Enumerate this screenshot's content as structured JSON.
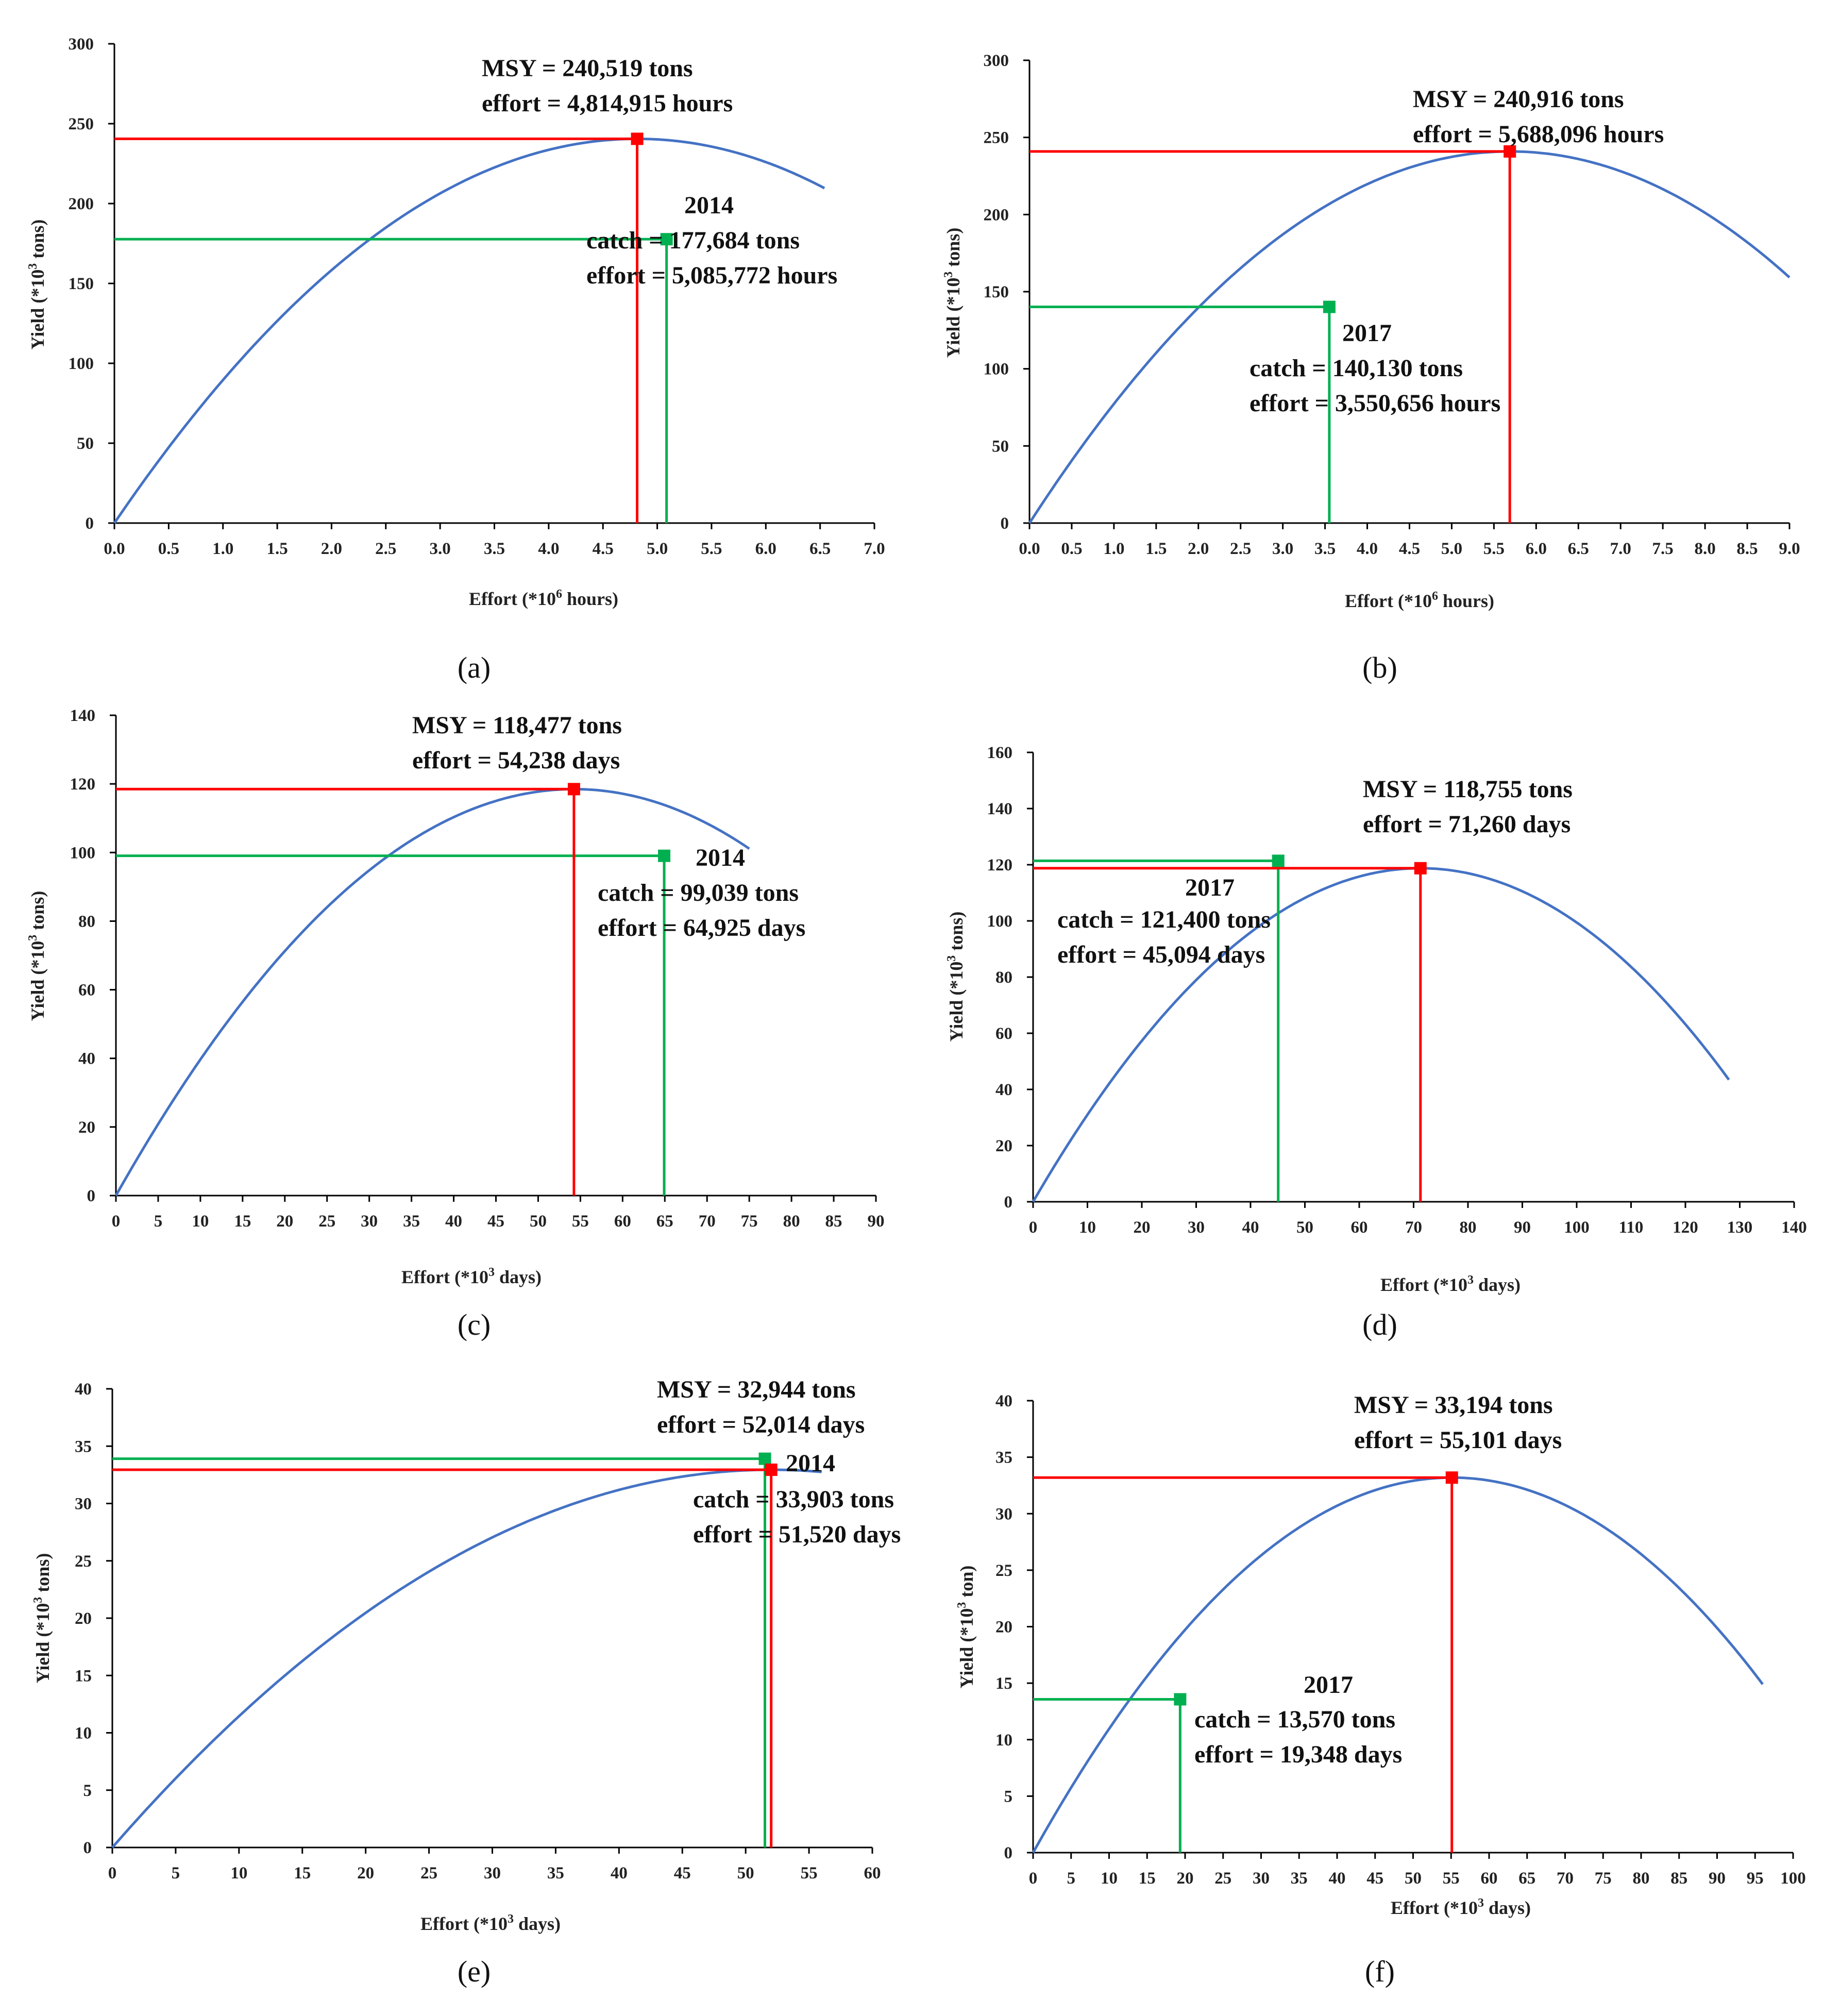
{
  "colors": {
    "curve": "#4472c4",
    "msy": "#ff0000",
    "observed": "#00b050",
    "axis": "#000000"
  },
  "chart_data": [
    {
      "type": "line",
      "caption": "(a)",
      "xlabel": "Effort (*10",
      "xlabel_sup": "6",
      "xlabel_end": " hours)",
      "ylabel": "Yield (*10",
      "ylabel_sup": "3",
      "ylabel_end": "  tons)",
      "xlim": [
        0,
        7
      ],
      "ylim": [
        0,
        300
      ],
      "xstep": 0.5,
      "ystep": 50,
      "xdecimals": 1,
      "curve": {
        "emax": 6.54,
        "fmsy": 4.814915,
        "msy": 240.519
      },
      "msy_point": {
        "x": 4.814915,
        "y": 240.519
      },
      "obs_point": {
        "x": 5.085772,
        "y": 177.684
      },
      "msy_text": {
        "line1": "MSY = 240,519 tons",
        "line2": "effort = 4,814,915 hours"
      },
      "obs_text": {
        "year": "2014",
        "line1": "catch = 177,684 tons",
        "line2": "effort = 5,085,772 hours"
      }
    },
    {
      "type": "line",
      "caption": "(b)",
      "xlabel": "Effort (*10",
      "xlabel_sup": "6",
      "xlabel_end": " hours)",
      "ylabel": "Yield (*10",
      "ylabel_sup": "3",
      "ylabel_end": " tons)",
      "xlim": [
        0,
        9
      ],
      "ylim": [
        0,
        300
      ],
      "xstep": 0.5,
      "ystep": 50,
      "xdecimals": 1,
      "curve": {
        "emax": 9.0,
        "fmsy": 5.688096,
        "msy": 240.916
      },
      "msy_point": {
        "x": 5.688096,
        "y": 240.916
      },
      "obs_point": {
        "x": 3.550656,
        "y": 140.13
      },
      "msy_text": {
        "line1": "MSY = 240,916 tons",
        "line2": "effort = 5,688,096 hours"
      },
      "obs_text": {
        "year": "2017",
        "line1": "catch = 140,130 tons",
        "line2": "effort = 3,550,656 hours"
      }
    },
    {
      "type": "line",
      "caption": "(c)",
      "xlabel": "Effort (*10",
      "xlabel_sup": "3",
      "xlabel_end": " days)",
      "ylabel": "Yield (*10",
      "ylabel_sup": "3",
      "ylabel_end": " tons)",
      "xlim": [
        0,
        90
      ],
      "ylim": [
        0,
        140
      ],
      "xstep": 5,
      "ystep": 20,
      "xdecimals": 0,
      "curve": {
        "emax": 75,
        "fmsy": 54.238,
        "msy": 118.477
      },
      "msy_point": {
        "x": 54.238,
        "y": 118.477
      },
      "obs_point": {
        "x": 64.925,
        "y": 99.039
      },
      "msy_text": {
        "line1": "MSY = 118,477 tons",
        "line2": "effort = 54,238 days"
      },
      "obs_text": {
        "year": "2014",
        "line1": "catch = 99,039 tons",
        "line2": "effort = 64,925 days"
      }
    },
    {
      "type": "line",
      "caption": "(d)",
      "xlabel": "Effort (*10",
      "xlabel_sup": "3",
      "xlabel_end": " days)",
      "ylabel": "Yield (*10",
      "ylabel_sup": "3",
      "ylabel_end": " tons)",
      "xlim": [
        0,
        140
      ],
      "ylim": [
        0,
        160
      ],
      "xstep": 10,
      "ystep": 20,
      "xdecimals": 0,
      "curve": {
        "emax": 128,
        "fmsy": 71.26,
        "msy": 118.755
      },
      "msy_point": {
        "x": 71.26,
        "y": 118.755
      },
      "obs_point": {
        "x": 45.094,
        "y": 121.4
      },
      "msy_text": {
        "line1": "MSY = 118,755 tons",
        "line2": "effort = 71,260 days"
      },
      "obs_text": {
        "year": "2017",
        "line1": "catch = 121,400 tons",
        "line2": "effort =  45,094 days"
      }
    },
    {
      "type": "line",
      "caption": "(e)",
      "xlabel": "Effort (*10",
      "xlabel_sup": "3",
      "xlabel_end": " days)",
      "ylabel": "Yield (*10",
      "ylabel_sup": "3",
      "ylabel_end": " tons)",
      "xlim": [
        0,
        60
      ],
      "ylim": [
        0,
        40
      ],
      "xstep": 5,
      "ystep": 5,
      "xdecimals": 0,
      "curve": {
        "emax": 56,
        "fmsy": 52.014,
        "msy": 32.944
      },
      "msy_point": {
        "x": 52.014,
        "y": 32.944
      },
      "obs_point": {
        "x": 51.52,
        "y": 33.903
      },
      "msy_text": {
        "line1": "MSY = 32,944 tons",
        "line2": "effort = 52,014 days"
      },
      "obs_text": {
        "year": "2014",
        "line1": "catch = 33,903 tons",
        "line2": "effort = 51,520 days"
      }
    },
    {
      "type": "line",
      "caption": "(f)",
      "xlabel": "Effort (*10",
      "xlabel_sup": "3",
      "xlabel_end": " days)",
      "ylabel": "Yield (*10",
      "ylabel_sup": "3",
      "ylabel_end": " ton)",
      "xlim": [
        0,
        100
      ],
      "ylim": [
        0,
        40
      ],
      "xstep": 5,
      "ystep": 5,
      "xdecimals": 0,
      "curve": {
        "emax": 96,
        "fmsy": 55.101,
        "msy": 33.194
      },
      "msy_point": {
        "x": 55.101,
        "y": 33.194
      },
      "obs_point": {
        "x": 19.348,
        "y": 13.57
      },
      "msy_text": {
        "line1": "MSY = 33,194 tons",
        "line2": "effort = 55,101 days"
      },
      "obs_text": {
        "year": "2017",
        "line1": "catch  = 13,570 tons",
        "line2": "effort = 19,348 days"
      }
    }
  ]
}
